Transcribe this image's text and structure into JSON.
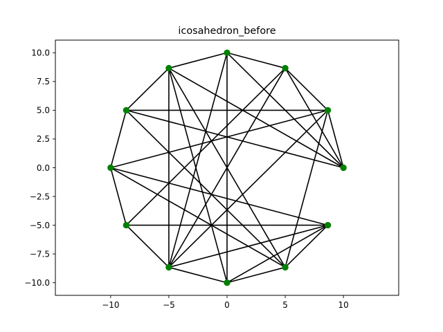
{
  "chart_data": {
    "type": "scatter",
    "title": "icosahedron_before",
    "xlabel": "",
    "ylabel": "",
    "xlim": [
      -14.75,
      14.75
    ],
    "ylim": [
      -11.1,
      11.1
    ],
    "grid": false,
    "legend": "none",
    "xticks": [
      -10,
      -5,
      0,
      5,
      10
    ],
    "xtick_labels": [
      "−10",
      "−5",
      "0",
      "5",
      "10"
    ],
    "yticks": [
      10,
      7.5,
      5,
      2.5,
      0,
      -2.5,
      -5,
      -7.5,
      -10
    ],
    "ytick_labels": [
      "10.0",
      "7.5",
      "5.0",
      "2.5",
      "0.0",
      "−2.5",
      "−5.0",
      "−7.5",
      "−10.0"
    ],
    "node_color": "#008000",
    "edge_color": "#000000",
    "nodes": [
      {
        "x": 10,
        "y": 0
      },
      {
        "x": 8.66,
        "y": 5
      },
      {
        "x": 5,
        "y": 8.66
      },
      {
        "x": 0,
        "y": 10
      },
      {
        "x": -5,
        "y": 8.66
      },
      {
        "x": -8.66,
        "y": 5
      },
      {
        "x": -10,
        "y": 0
      },
      {
        "x": -8.66,
        "y": -5
      },
      {
        "x": -5,
        "y": -8.66
      },
      {
        "x": 0,
        "y": -10
      },
      {
        "x": 5,
        "y": -8.66
      },
      {
        "x": 8.66,
        "y": -5
      }
    ],
    "edges": [
      [
        0,
        1
      ],
      [
        0,
        2
      ],
      [
        0,
        3
      ],
      [
        0,
        4
      ],
      [
        0,
        5
      ],
      [
        1,
        2
      ],
      [
        1,
        5
      ],
      [
        1,
        6
      ],
      [
        1,
        10
      ],
      [
        1,
        8
      ],
      [
        2,
        3
      ],
      [
        2,
        8
      ],
      [
        2,
        7
      ],
      [
        3,
        4
      ],
      [
        3,
        8
      ],
      [
        3,
        9
      ],
      [
        4,
        5
      ],
      [
        4,
        8
      ],
      [
        4,
        9
      ],
      [
        4,
        10
      ],
      [
        5,
        6
      ],
      [
        5,
        10
      ],
      [
        6,
        7
      ],
      [
        6,
        11
      ],
      [
        6,
        10
      ],
      [
        7,
        8
      ],
      [
        7,
        11
      ],
      [
        8,
        9
      ],
      [
        8,
        11
      ],
      [
        9,
        10
      ],
      [
        9,
        11
      ],
      [
        10,
        11
      ]
    ]
  }
}
